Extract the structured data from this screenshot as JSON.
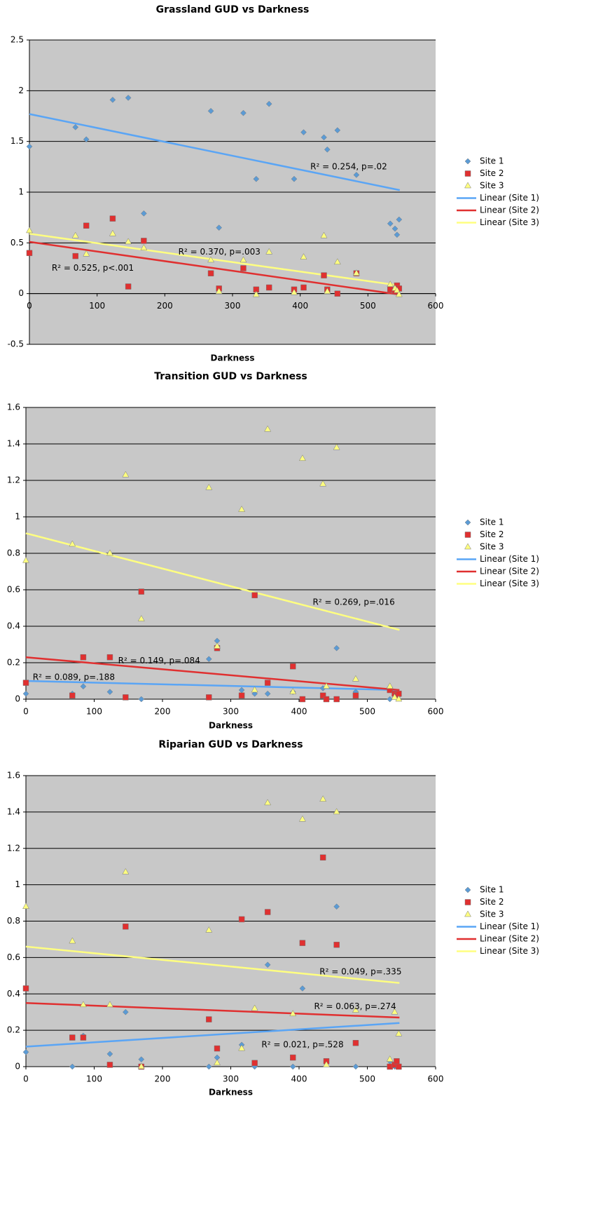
{
  "chart_data": [
    {
      "type": "scatter",
      "title": "Grassland GUD vs Darkness",
      "xlabel": "Darkness",
      "xlim": [
        0,
        600
      ],
      "ylim": [
        -0.5,
        2.5
      ],
      "xticks": [
        0,
        100,
        200,
        300,
        400,
        500,
        600
      ],
      "yticks": [
        -0.5,
        0,
        0.5,
        1,
        1.5,
        2,
        2.5
      ],
      "grid": true,
      "legend": "right",
      "series": [
        {
          "name": "Site 1",
          "color": "#5b9bd5",
          "marker": "diamond",
          "x": [
            0,
            68,
            84,
            123,
            146,
            169,
            268,
            280,
            316,
            335,
            354,
            391,
            405,
            435,
            440,
            455,
            483,
            533,
            540,
            543,
            546
          ],
          "y": [
            1.45,
            1.64,
            1.52,
            1.91,
            1.93,
            0.79,
            1.8,
            0.65,
            1.78,
            1.13,
            1.87,
            1.13,
            1.59,
            1.54,
            1.42,
            1.61,
            1.17,
            0.69,
            0.64,
            0.58,
            0.73
          ]
        },
        {
          "name": "Site 2",
          "color": "#e03030",
          "marker": "square",
          "x": [
            0,
            68,
            84,
            123,
            146,
            169,
            268,
            280,
            316,
            335,
            354,
            391,
            405,
            435,
            440,
            455,
            483,
            533,
            540,
            543,
            546
          ],
          "y": [
            0.4,
            0.37,
            0.67,
            0.74,
            0.07,
            0.52,
            0.2,
            0.05,
            0.25,
            0.04,
            0.06,
            0.04,
            0.06,
            0.18,
            0.04,
            0.0,
            0.2,
            0.04,
            0.02,
            0.08,
            0.05
          ]
        },
        {
          "name": "Site 3",
          "color": "#ffff80",
          "marker": "triangle",
          "x": [
            0,
            68,
            84,
            123,
            146,
            169,
            268,
            280,
            316,
            335,
            354,
            391,
            405,
            435,
            440,
            455,
            483,
            533,
            540,
            543,
            546
          ],
          "y": [
            0.62,
            0.57,
            0.39,
            0.59,
            0.51,
            0.45,
            0.33,
            0.02,
            0.33,
            -0.01,
            0.41,
            0.01,
            0.36,
            0.57,
            0.02,
            0.31,
            0.2,
            0.09,
            0.05,
            0.03,
            -0.01
          ]
        }
      ],
      "trendlines": [
        {
          "name": "Linear (Site 1)",
          "color": "#5aa5f5",
          "x": [
            0,
            547
          ],
          "y": [
            1.77,
            1.02
          ]
        },
        {
          "name": "Linear (Site 2)",
          "color": "#e03030",
          "x": [
            0,
            547
          ],
          "y": [
            0.51,
            -0.01
          ]
        },
        {
          "name": "Linear (Site 3)",
          "color": "#ffff80",
          "x": [
            0,
            547
          ],
          "y": [
            0.59,
            0.08
          ]
        }
      ],
      "annotations": [
        "R² = 0.254, p=.02",
        "R² = 0.370, p=.003",
        "R² = 0.525, p<.001"
      ]
    },
    {
      "type": "scatter",
      "title": "Transition GUD vs Darkness",
      "xlabel": "Darkness",
      "xlim": [
        0,
        600
      ],
      "ylim": [
        0,
        1.6
      ],
      "xticks": [
        0,
        100,
        200,
        300,
        400,
        500,
        600
      ],
      "yticks": [
        0,
        0.2,
        0.4,
        0.6,
        0.8,
        1,
        1.2,
        1.4,
        1.6
      ],
      "grid": true,
      "legend": "right",
      "series": [
        {
          "name": "Site 1",
          "color": "#5b9bd5",
          "marker": "diamond",
          "x": [
            0,
            68,
            84,
            123,
            169,
            268,
            280,
            316,
            335,
            354,
            391,
            435,
            455,
            483,
            533,
            540,
            546
          ],
          "y": [
            0.03,
            0.03,
            0.07,
            0.04,
            0.0,
            0.22,
            0.32,
            0.05,
            0.03,
            0.03,
            0.04,
            0.06,
            0.28,
            0.04,
            0.0,
            0.02,
            0.02
          ]
        },
        {
          "name": "Site 2",
          "color": "#e03030",
          "marker": "square",
          "x": [
            0,
            68,
            84,
            123,
            146,
            169,
            268,
            280,
            316,
            335,
            354,
            391,
            405,
            435,
            440,
            455,
            483,
            533,
            540,
            543,
            546
          ],
          "y": [
            0.09,
            0.02,
            0.23,
            0.23,
            0.01,
            0.59,
            0.01,
            0.28,
            0.02,
            0.57,
            0.09,
            0.18,
            0.0,
            0.02,
            0.0,
            0.0,
            0.02,
            0.05,
            0.03,
            0.02,
            0.03
          ]
        },
        {
          "name": "Site 3",
          "color": "#ffff80",
          "marker": "triangle",
          "x": [
            0,
            68,
            123,
            146,
            169,
            268,
            280,
            316,
            335,
            354,
            391,
            405,
            435,
            440,
            455,
            483,
            533,
            540,
            546
          ],
          "y": [
            0.76,
            0.85,
            0.8,
            1.23,
            0.44,
            1.16,
            0.29,
            1.04,
            0.05,
            1.48,
            0.04,
            1.32,
            1.18,
            0.07,
            1.38,
            0.11,
            0.07,
            0.01,
            0.0
          ]
        }
      ],
      "trendlines": [
        {
          "name": "Linear (Site 1)",
          "color": "#5aa5f5",
          "x": [
            0,
            547
          ],
          "y": [
            0.1,
            0.05
          ]
        },
        {
          "name": "Linear (Site 2)",
          "color": "#e03030",
          "x": [
            0,
            547
          ],
          "y": [
            0.23,
            0.05
          ]
        },
        {
          "name": "Linear (Site 3)",
          "color": "#ffff80",
          "x": [
            0,
            547
          ],
          "y": [
            0.91,
            0.38
          ]
        }
      ],
      "annotations": [
        "R² = 0.269, p=.016",
        "R² = 0.149, p=.084",
        "R² = 0.089, p=.188"
      ]
    },
    {
      "type": "scatter",
      "title": "Riparian GUD vs Darkness",
      "xlabel": "Darkness",
      "xlim": [
        0,
        600
      ],
      "ylim": [
        0,
        1.6
      ],
      "xticks": [
        0,
        100,
        200,
        300,
        400,
        500,
        600
      ],
      "yticks": [
        0,
        0.2,
        0.4,
        0.6,
        0.8,
        1,
        1.2,
        1.4,
        1.6
      ],
      "grid": true,
      "legend": "right",
      "series": [
        {
          "name": "Site 1",
          "color": "#5b9bd5",
          "marker": "diamond",
          "x": [
            0,
            68,
            84,
            123,
            146,
            169,
            268,
            280,
            316,
            335,
            354,
            391,
            405,
            455,
            483,
            533,
            540,
            546
          ],
          "y": [
            0.08,
            0.0,
            0.17,
            0.07,
            0.3,
            0.04,
            0.0,
            0.05,
            0.12,
            0.0,
            0.56,
            0.0,
            0.43,
            0.88,
            0.0,
            0.03,
            0.0,
            0.0
          ]
        },
        {
          "name": "Site 2",
          "color": "#e03030",
          "marker": "square",
          "x": [
            0,
            68,
            84,
            123,
            146,
            169,
            268,
            280,
            316,
            335,
            354,
            391,
            405,
            435,
            440,
            455,
            483,
            533,
            540,
            543,
            546
          ],
          "y": [
            0.43,
            0.16,
            0.16,
            0.01,
            0.77,
            0.0,
            0.26,
            0.1,
            0.81,
            0.02,
            0.85,
            0.05,
            0.68,
            1.15,
            0.03,
            0.67,
            0.13,
            0.0,
            0.01,
            0.03,
            0.0
          ]
        },
        {
          "name": "Site 3",
          "color": "#ffff80",
          "marker": "triangle",
          "x": [
            0,
            68,
            84,
            123,
            146,
            169,
            268,
            280,
            316,
            335,
            354,
            391,
            405,
            435,
            440,
            455,
            483,
            533,
            540,
            546
          ],
          "y": [
            0.88,
            0.69,
            0.34,
            0.34,
            1.07,
            0.0,
            0.75,
            0.02,
            0.1,
            0.32,
            1.45,
            0.29,
            1.36,
            1.47,
            0.01,
            1.4,
            0.31,
            0.04,
            0.3,
            0.18
          ]
        }
      ],
      "trendlines": [
        {
          "name": "Linear (Site 1)",
          "color": "#5aa5f5",
          "x": [
            0,
            547
          ],
          "y": [
            0.11,
            0.24
          ]
        },
        {
          "name": "Linear (Site 2)",
          "color": "#e03030",
          "x": [
            0,
            547
          ],
          "y": [
            0.35,
            0.27
          ]
        },
        {
          "name": "Linear (Site 3)",
          "color": "#ffff80",
          "x": [
            0,
            547
          ],
          "y": [
            0.66,
            0.46
          ]
        }
      ],
      "annotations": [
        "R² = 0.049, p=.335",
        "R² = 0.063, p=.274",
        "R² = 0.021, p=.528"
      ]
    }
  ]
}
